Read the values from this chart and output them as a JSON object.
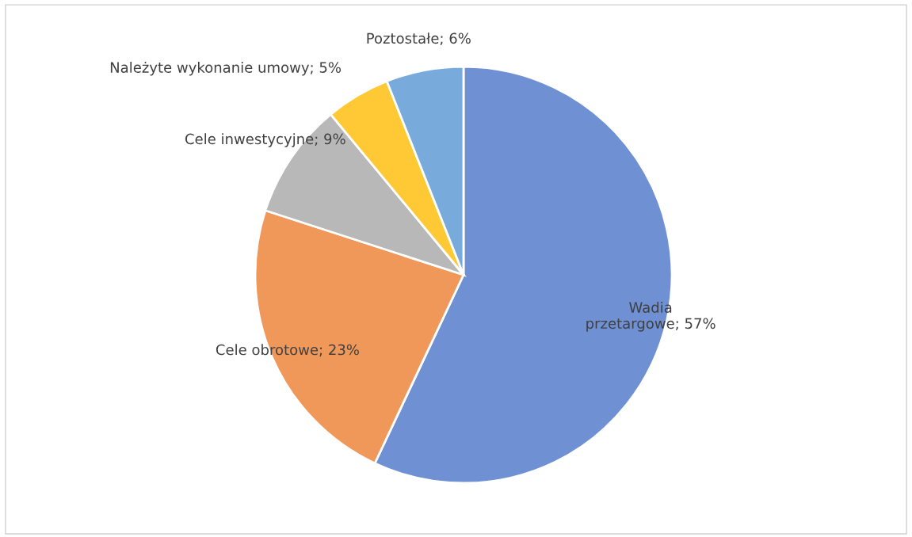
{
  "chart_data": {
    "type": "pie",
    "categories": [
      "Wadia przetargowe",
      "Cele obrotowe",
      "Cele inwestycyjne",
      "Należyte wykonanie umowy",
      "Poztostałe"
    ],
    "values": [
      57,
      23,
      9,
      5,
      6
    ],
    "colors": [
      "#6f91d4",
      "#f0985a",
      "#b8b8b8",
      "#ffc935",
      "#78abdc"
    ],
    "value_labels": [
      "57%",
      "23%",
      "9%",
      "5%",
      "6%"
    ]
  }
}
